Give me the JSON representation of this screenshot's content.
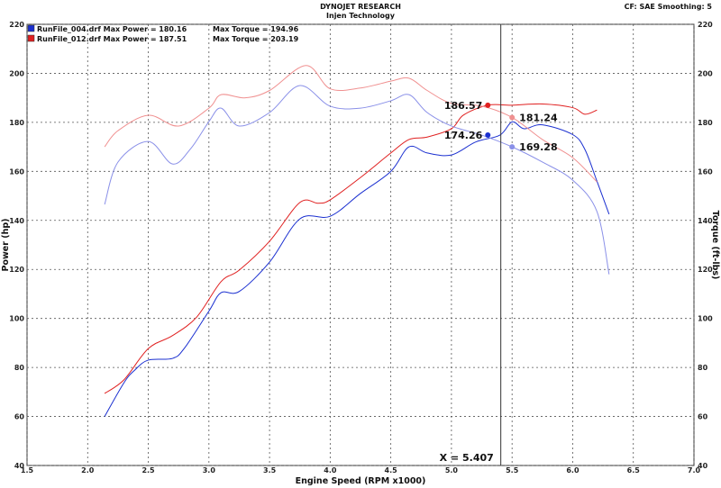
{
  "chart_data": {
    "type": "line",
    "title": "DYNOJET RESEARCH",
    "subtitle": "Injen Technology",
    "settings": "CF: SAE  Smoothing: 5",
    "xlabel": "Engine Speed (RPM x1000)",
    "ylabel": "Power (hp)",
    "ylabel_right": "Torque (ft-lbs)",
    "xlim": [
      1.5,
      7.0
    ],
    "ylim": [
      40,
      220
    ],
    "xticks": [
      "1.5",
      "2.0",
      "2.5",
      "3.0",
      "3.5",
      "4.0",
      "4.5",
      "5.0",
      "5.5",
      "6.0",
      "6.5",
      "7.0"
    ],
    "yticks": [
      "40",
      "60",
      "80",
      "100",
      "120",
      "140",
      "160",
      "180",
      "200",
      "220"
    ],
    "grid": true,
    "legend": [
      {
        "label": "RunFile_004.drf Max Power = 180.16",
        "torque": "Max Torque = 194.96",
        "color": "#1a2fd0"
      },
      {
        "label": "RunFile_012.drf Max Power = 187.51",
        "torque": "Max Torque = 203.19",
        "color": "#e02020"
      }
    ],
    "cursor": {
      "x": 5.407,
      "label": "X = 5.407"
    },
    "series": [
      {
        "file": "RunFile_004.drf",
        "measure": "power",
        "color": "#1a2fd0",
        "x": [
          2.14,
          2.3,
          2.39,
          2.5,
          2.7,
          2.8,
          3.0,
          3.1,
          3.25,
          3.5,
          3.75,
          4.0,
          4.25,
          4.5,
          4.65,
          4.8,
          5.0,
          5.2,
          5.4,
          5.5,
          5.6,
          5.75,
          6.0,
          6.1,
          6.2,
          6.3
        ],
        "y": [
          60,
          73.8,
          79,
          83,
          83.7,
          88,
          103,
          110.5,
          111,
          123,
          140.6,
          141.7,
          151,
          160,
          170,
          167.5,
          166.7,
          172,
          174.8,
          180.2,
          177.4,
          179,
          175,
          169,
          156,
          142.5
        ],
        "cursor_value": "174.26"
      },
      {
        "file": "RunFile_012.drf",
        "measure": "power",
        "color": "#e02020",
        "x": [
          2.14,
          2.3,
          2.5,
          2.7,
          2.9,
          3.1,
          3.25,
          3.5,
          3.75,
          3.9,
          4.0,
          4.25,
          4.5,
          4.65,
          4.8,
          5.0,
          5.1,
          5.3,
          5.5,
          5.75,
          6.0,
          6.1,
          6.2
        ],
        "y": [
          69.4,
          75,
          87.7,
          93,
          100.6,
          115,
          119.7,
          131.5,
          147.3,
          147,
          148.4,
          157.5,
          167.5,
          173,
          174,
          177.4,
          183,
          187,
          187,
          187.5,
          186,
          183.3,
          185
        ],
        "cursor_value": "186.57"
      },
      {
        "file": "RunFile_004.drf",
        "measure": "torque",
        "color": "#8a90e8",
        "x": [
          2.14,
          2.25,
          2.5,
          2.7,
          2.85,
          3.0,
          3.1,
          3.25,
          3.5,
          3.75,
          4.0,
          4.25,
          4.5,
          4.65,
          4.8,
          5.0,
          5.25,
          5.5,
          5.75,
          6.0,
          6.2,
          6.3
        ],
        "y": [
          146.5,
          163.8,
          172.2,
          163,
          169.3,
          180.3,
          185.8,
          178.5,
          184,
          195,
          186.6,
          185.8,
          188.8,
          191.3,
          184,
          178.5,
          174.8,
          170,
          163.8,
          156.4,
          143.6,
          118
        ],
        "cursor_value": "169.28"
      },
      {
        "file": "RunFile_012.drf",
        "measure": "torque",
        "color": "#f09090",
        "x": [
          2.14,
          2.25,
          2.5,
          2.75,
          3.0,
          3.1,
          3.3,
          3.5,
          3.8,
          4.0,
          4.25,
          4.5,
          4.65,
          4.8,
          5.0,
          5.25,
          5.5,
          5.75,
          6.0,
          6.2
        ],
        "y": [
          170,
          176.6,
          182.9,
          178.5,
          185.8,
          191.3,
          190,
          193,
          203.2,
          193.7,
          194,
          196.8,
          198,
          193,
          187.7,
          186.6,
          182,
          173,
          165.6,
          155.7
        ],
        "cursor_value": "181.24"
      }
    ]
  }
}
